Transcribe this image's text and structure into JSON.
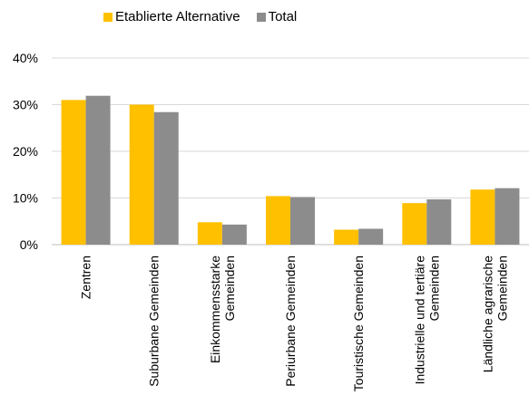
{
  "chart_data": {
    "type": "bar",
    "categories": [
      [
        "Zentren"
      ],
      [
        "Suburbane Gemeinden"
      ],
      [
        "Einkommensstarke",
        "Gemeinden"
      ],
      [
        "Periurbane Gemeinden"
      ],
      [
        "Touristische Gemeinden"
      ],
      [
        "Industrielle und tertiäre",
        "Gemeinden"
      ],
      [
        "Ländliche agrarische",
        "Gemeinden"
      ]
    ],
    "series": [
      {
        "name": "Etablierte Alternative",
        "color": "#ffc000",
        "values": [
          31.0,
          30.0,
          4.8,
          10.4,
          3.2,
          8.9,
          11.8
        ]
      },
      {
        "name": "Total",
        "color": "#8c8c8c",
        "values": [
          31.9,
          28.4,
          4.3,
          10.2,
          3.4,
          9.7,
          12.1
        ]
      }
    ],
    "ylim": [
      0,
      40
    ],
    "yticks": [
      0,
      10,
      20,
      30,
      40
    ],
    "ytick_labels": [
      "0%",
      "10%",
      "20%",
      "30%",
      "40%"
    ],
    "grid": true,
    "legend": "top-left",
    "title": "",
    "xlabel": "",
    "ylabel": ""
  }
}
